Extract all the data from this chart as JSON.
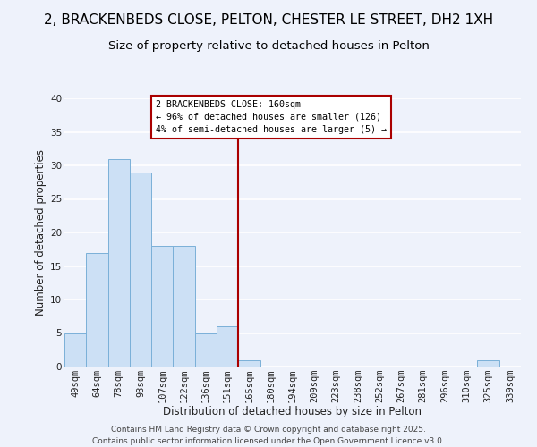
{
  "title": "2, BRACKENBEDS CLOSE, PELTON, CHESTER LE STREET, DH2 1XH",
  "subtitle": "Size of property relative to detached houses in Pelton",
  "xlabel": "Distribution of detached houses by size in Pelton",
  "ylabel": "Number of detached properties",
  "bar_color": "#cce0f5",
  "bar_edge_color": "#7ab0d8",
  "background_color": "#eef2fb",
  "grid_color": "#ffffff",
  "bins": [
    "49sqm",
    "64sqm",
    "78sqm",
    "93sqm",
    "107sqm",
    "122sqm",
    "136sqm",
    "151sqm",
    "165sqm",
    "180sqm",
    "194sqm",
    "209sqm",
    "223sqm",
    "238sqm",
    "252sqm",
    "267sqm",
    "281sqm",
    "296sqm",
    "310sqm",
    "325sqm",
    "339sqm"
  ],
  "values": [
    5,
    17,
    31,
    29,
    18,
    18,
    5,
    6,
    1,
    0,
    0,
    0,
    0,
    0,
    0,
    0,
    0,
    0,
    0,
    1,
    0
  ],
  "ylim": [
    0,
    40
  ],
  "yticks": [
    0,
    5,
    10,
    15,
    20,
    25,
    30,
    35,
    40
  ],
  "marker_label": "2 BRACKENBEDS CLOSE: 160sqm",
  "marker_line1": "← 96% of detached houses are smaller (126)",
  "marker_line2": "4% of semi-detached houses are larger (5) →",
  "marker_color": "#aa0000",
  "footer1": "Contains HM Land Registry data © Crown copyright and database right 2025.",
  "footer2": "Contains public sector information licensed under the Open Government Licence v3.0.",
  "title_fontsize": 11,
  "subtitle_fontsize": 9.5,
  "axis_label_fontsize": 8.5,
  "tick_fontsize": 7.5,
  "footer_fontsize": 6.5
}
